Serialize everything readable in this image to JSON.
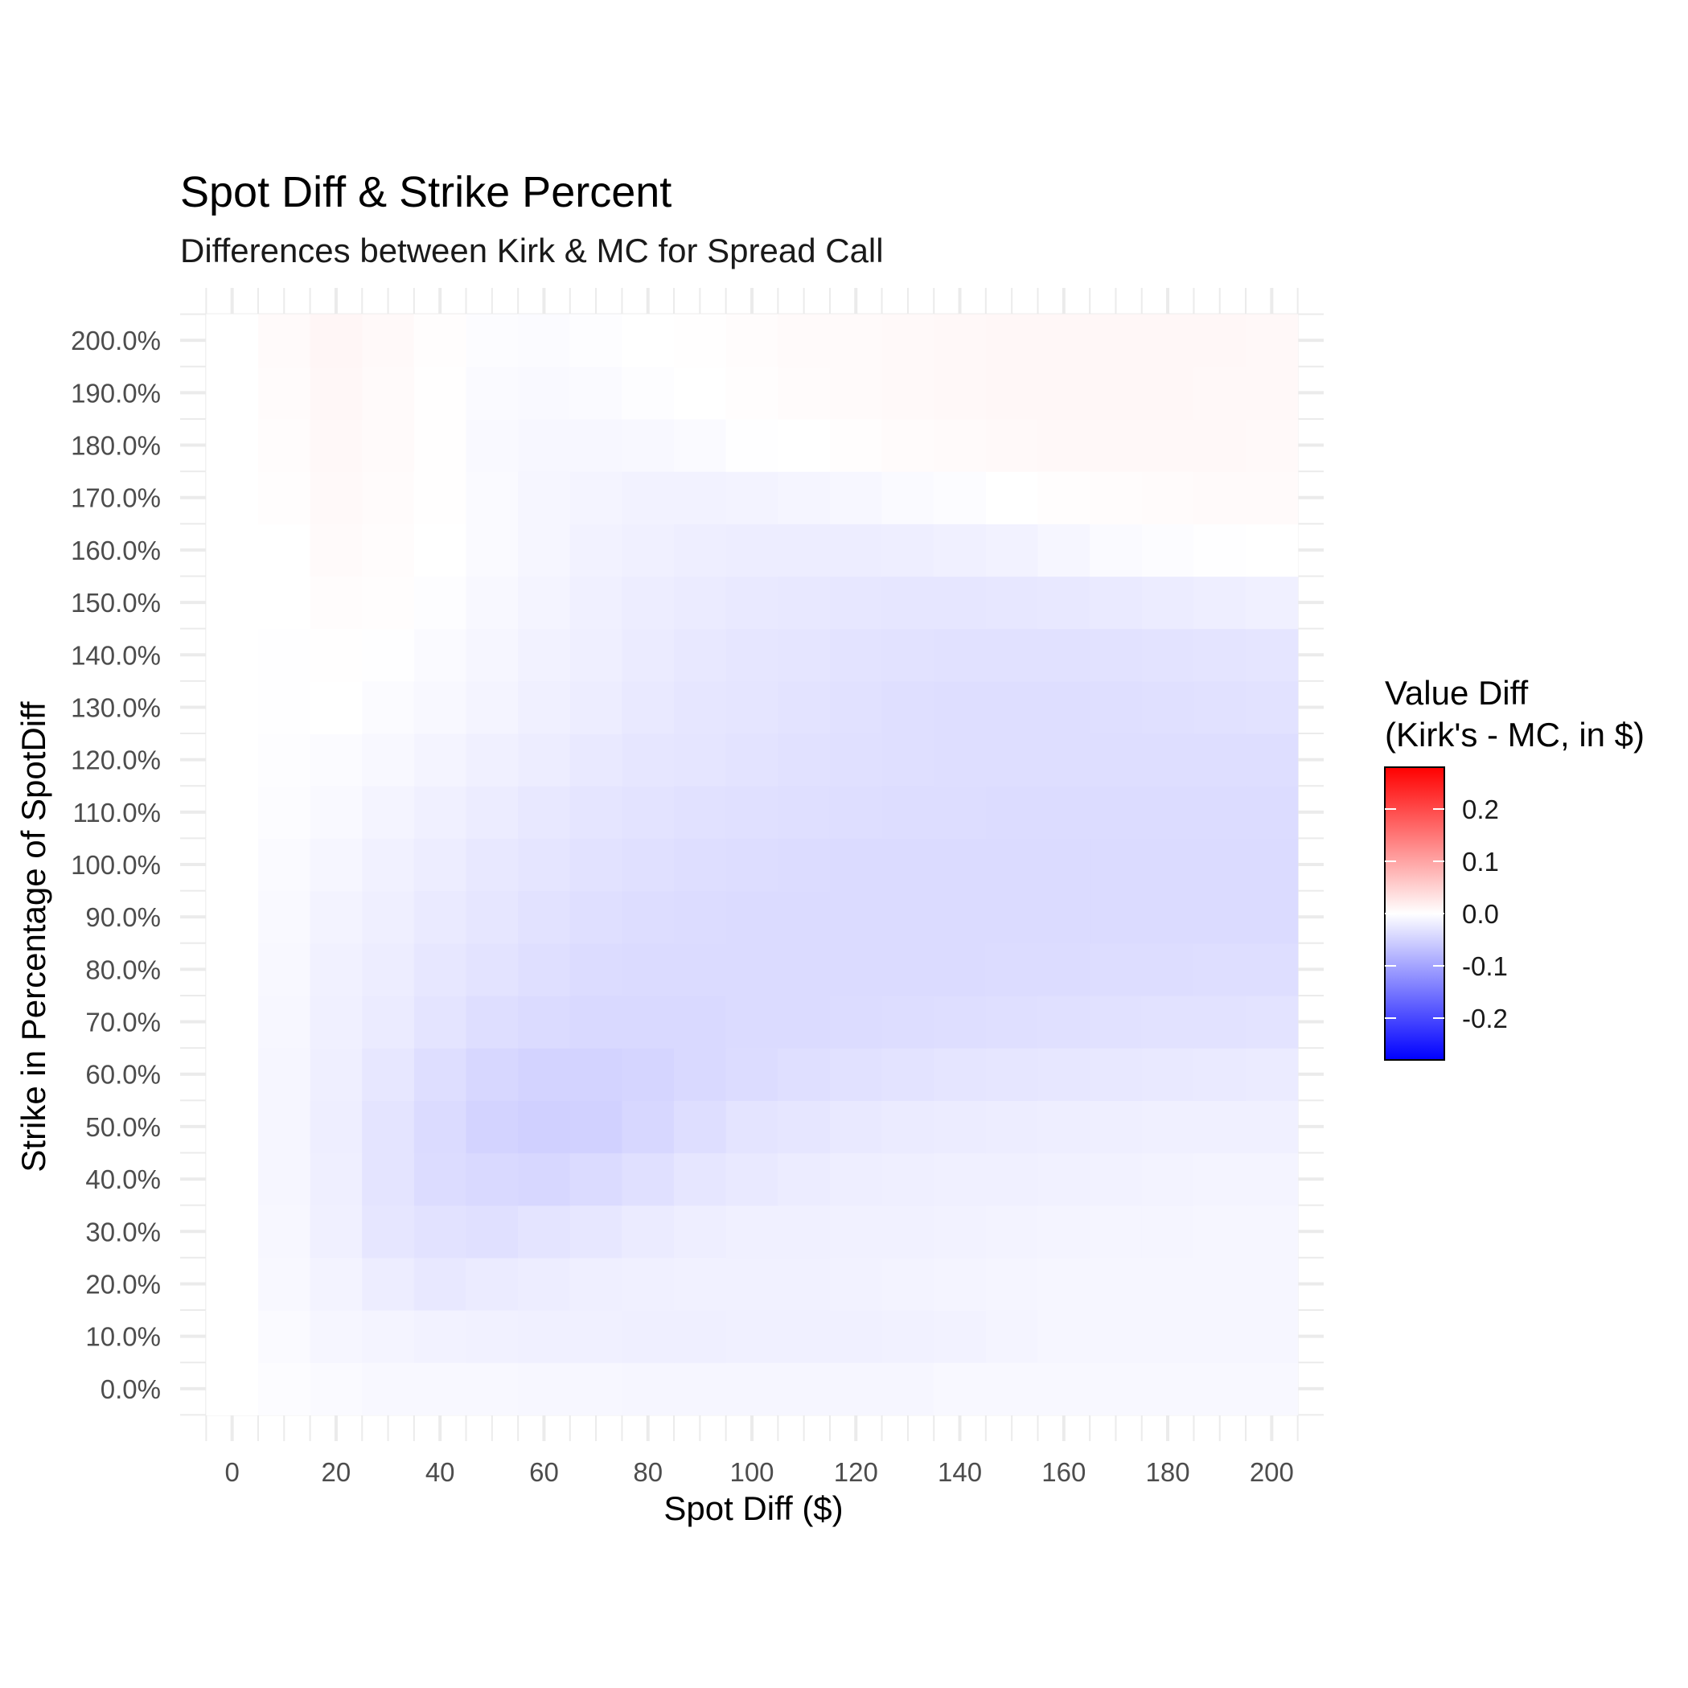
{
  "chart_data": {
    "type": "heatmap",
    "title": "Spot Diff & Strike Percent",
    "subtitle": "Differences between Kirk & MC for Spread Call",
    "xlabel": "Spot Diff ($)",
    "ylabel": "Strike in Percentage of SpotDiff",
    "x": [
      0,
      10,
      20,
      30,
      40,
      50,
      60,
      70,
      80,
      90,
      100,
      110,
      120,
      130,
      140,
      150,
      160,
      170,
      180,
      190,
      200
    ],
    "y": [
      0,
      10,
      20,
      30,
      40,
      50,
      60,
      70,
      80,
      90,
      100,
      110,
      120,
      130,
      140,
      150,
      160,
      170,
      180,
      190,
      200
    ],
    "xticks": [
      0,
      20,
      40,
      60,
      80,
      100,
      120,
      140,
      160,
      180,
      200
    ],
    "xtick_labels": [
      "0",
      "20",
      "40",
      "60",
      "80",
      "100",
      "120",
      "140",
      "160",
      "180",
      "200"
    ],
    "yticks": [
      0,
      10,
      20,
      30,
      40,
      50,
      60,
      70,
      80,
      90,
      100,
      110,
      120,
      130,
      140,
      150,
      160,
      170,
      180,
      190,
      200
    ],
    "ytick_labels": [
      "0.0%",
      "10.0%",
      "20.0%",
      "30.0%",
      "40.0%",
      "50.0%",
      "60.0%",
      "70.0%",
      "80.0%",
      "90.0%",
      "100.0%",
      "110.0%",
      "120.0%",
      "130.0%",
      "140.0%",
      "150.0%",
      "160.0%",
      "170.0%",
      "180.0%",
      "190.0%",
      "200.0%"
    ],
    "xlim": [
      -10,
      210
    ],
    "ylim": [
      -10,
      210
    ],
    "z_note": "values[i][j] = Value Diff at strike y[i], spot diff x[j]",
    "values": [
      [
        0,
        -0.003,
        -0.006,
        -0.008,
        -0.008,
        -0.008,
        -0.009,
        -0.009,
        -0.01,
        -0.01,
        -0.01,
        -0.01,
        -0.01,
        -0.01,
        -0.008,
        -0.008,
        -0.008,
        -0.008,
        -0.008,
        -0.008,
        -0.008
      ],
      [
        0,
        -0.005,
        -0.01,
        -0.012,
        -0.014,
        -0.015,
        -0.016,
        -0.017,
        -0.018,
        -0.018,
        -0.017,
        -0.017,
        -0.016,
        -0.015,
        -0.014,
        -0.012,
        -0.01,
        -0.01,
        -0.01,
        -0.01,
        -0.01
      ],
      [
        0,
        -0.008,
        -0.013,
        -0.02,
        -0.025,
        -0.022,
        -0.02,
        -0.018,
        -0.016,
        -0.015,
        -0.015,
        -0.015,
        -0.014,
        -0.013,
        -0.012,
        -0.011,
        -0.01,
        -0.01,
        -0.01,
        -0.01,
        -0.01
      ],
      [
        0,
        -0.009,
        -0.016,
        -0.028,
        -0.032,
        -0.034,
        -0.03,
        -0.026,
        -0.022,
        -0.019,
        -0.017,
        -0.016,
        -0.015,
        -0.015,
        -0.014,
        -0.013,
        -0.012,
        -0.011,
        -0.011,
        -0.01,
        -0.01
      ],
      [
        0,
        -0.01,
        -0.018,
        -0.03,
        -0.038,
        -0.042,
        -0.044,
        -0.04,
        -0.034,
        -0.028,
        -0.024,
        -0.021,
        -0.019,
        -0.018,
        -0.017,
        -0.016,
        -0.015,
        -0.014,
        -0.013,
        -0.012,
        -0.012
      ],
      [
        0,
        -0.01,
        -0.019,
        -0.03,
        -0.04,
        -0.048,
        -0.052,
        -0.05,
        -0.044,
        -0.036,
        -0.03,
        -0.027,
        -0.024,
        -0.022,
        -0.021,
        -0.02,
        -0.019,
        -0.018,
        -0.017,
        -0.016,
        -0.016
      ],
      [
        0,
        -0.01,
        -0.018,
        -0.026,
        -0.036,
        -0.044,
        -0.048,
        -0.048,
        -0.046,
        -0.042,
        -0.038,
        -0.035,
        -0.033,
        -0.031,
        -0.029,
        -0.027,
        -0.026,
        -0.025,
        -0.024,
        -0.023,
        -0.022
      ],
      [
        0,
        -0.009,
        -0.016,
        -0.022,
        -0.03,
        -0.036,
        -0.04,
        -0.042,
        -0.042,
        -0.042,
        -0.04,
        -0.039,
        -0.038,
        -0.037,
        -0.036,
        -0.035,
        -0.034,
        -0.033,
        -0.032,
        -0.032,
        -0.031
      ],
      [
        0,
        -0.008,
        -0.015,
        -0.02,
        -0.026,
        -0.031,
        -0.035,
        -0.038,
        -0.039,
        -0.04,
        -0.04,
        -0.04,
        -0.04,
        -0.04,
        -0.039,
        -0.038,
        -0.038,
        -0.037,
        -0.037,
        -0.036,
        -0.036
      ],
      [
        0,
        -0.007,
        -0.013,
        -0.018,
        -0.023,
        -0.028,
        -0.032,
        -0.035,
        -0.037,
        -0.038,
        -0.039,
        -0.04,
        -0.04,
        -0.04,
        -0.04,
        -0.04,
        -0.04,
        -0.04,
        -0.04,
        -0.04,
        -0.04
      ],
      [
        0,
        -0.005,
        -0.01,
        -0.015,
        -0.02,
        -0.025,
        -0.029,
        -0.032,
        -0.034,
        -0.036,
        -0.037,
        -0.038,
        -0.039,
        -0.039,
        -0.039,
        -0.039,
        -0.039,
        -0.039,
        -0.039,
        -0.039,
        -0.039
      ],
      [
        0,
        -0.003,
        -0.007,
        -0.012,
        -0.016,
        -0.021,
        -0.025,
        -0.029,
        -0.031,
        -0.033,
        -0.034,
        -0.035,
        -0.036,
        -0.037,
        -0.037,
        -0.038,
        -0.038,
        -0.038,
        -0.038,
        -0.038,
        -0.038
      ],
      [
        0,
        -0.002,
        -0.004,
        -0.008,
        -0.012,
        -0.016,
        -0.02,
        -0.024,
        -0.027,
        -0.029,
        -0.031,
        -0.033,
        -0.034,
        -0.035,
        -0.036,
        -0.036,
        -0.036,
        -0.036,
        -0.036,
        -0.036,
        -0.036
      ],
      [
        0,
        -0.001,
        0.0,
        -0.004,
        -0.008,
        -0.012,
        -0.016,
        -0.02,
        -0.024,
        -0.027,
        -0.029,
        -0.031,
        -0.033,
        -0.035,
        -0.036,
        -0.036,
        -0.036,
        -0.035,
        -0.034,
        -0.033,
        -0.032
      ],
      [
        0,
        -0.001,
        0.001,
        -0.001,
        -0.005,
        -0.01,
        -0.014,
        -0.018,
        -0.022,
        -0.025,
        -0.027,
        -0.029,
        -0.031,
        -0.032,
        -0.033,
        -0.033,
        -0.033,
        -0.032,
        -0.031,
        -0.03,
        -0.029
      ],
      [
        0,
        0.0,
        0.003,
        0.002,
        -0.002,
        -0.008,
        -0.012,
        -0.016,
        -0.02,
        -0.022,
        -0.024,
        -0.025,
        -0.026,
        -0.027,
        -0.027,
        -0.026,
        -0.025,
        -0.023,
        -0.021,
        -0.019,
        -0.017
      ],
      [
        0,
        0.0,
        0.005,
        0.003,
        0.0,
        -0.006,
        -0.01,
        -0.014,
        -0.017,
        -0.019,
        -0.02,
        -0.02,
        -0.02,
        -0.019,
        -0.017,
        -0.014,
        -0.01,
        -0.006,
        -0.003,
        -0.001,
        0.0
      ],
      [
        0,
        0.002,
        0.007,
        0.004,
        0.001,
        -0.006,
        -0.01,
        -0.012,
        -0.014,
        -0.014,
        -0.013,
        -0.011,
        -0.009,
        -0.006,
        -0.003,
        0.0,
        0.002,
        0.003,
        0.004,
        0.005,
        0.006
      ],
      [
        0,
        0.003,
        0.008,
        0.005,
        0.001,
        -0.007,
        -0.009,
        -0.009,
        -0.008,
        -0.005,
        -0.001,
        0.0,
        0.002,
        0.004,
        0.006,
        0.007,
        0.008,
        0.008,
        0.008,
        0.008,
        0.007
      ],
      [
        0,
        0.004,
        0.009,
        0.006,
        0.001,
        -0.005,
        -0.007,
        -0.005,
        -0.002,
        0.0,
        0.002,
        0.004,
        0.006,
        0.007,
        0.008,
        0.009,
        0.009,
        0.009,
        0.009,
        0.008,
        0.008
      ],
      [
        0,
        0.005,
        0.01,
        0.007,
        0.002,
        -0.003,
        -0.004,
        -0.002,
        0.0,
        0.001,
        0.003,
        0.005,
        0.006,
        0.007,
        0.008,
        0.009,
        0.009,
        0.009,
        0.009,
        0.009,
        0.008
      ]
    ],
    "legend": {
      "title_line1": "Value Diff",
      "title_line2": "(Kirk's - MC, in $)",
      "ticks": [
        0.2,
        0.1,
        0.0,
        -0.1,
        -0.2
      ],
      "tick_labels": [
        "0.2",
        "0.1",
        "0.0",
        "-0.1",
        "-0.2"
      ],
      "limits": [
        -0.28,
        0.28
      ],
      "low_color": "#0000FF",
      "mid_color": "#FFFFFF",
      "high_color": "#FF0000",
      "placement": "right"
    },
    "grid": true,
    "grid_color": "#EBEBEB",
    "tick_label_color": "#4D4D4D"
  }
}
